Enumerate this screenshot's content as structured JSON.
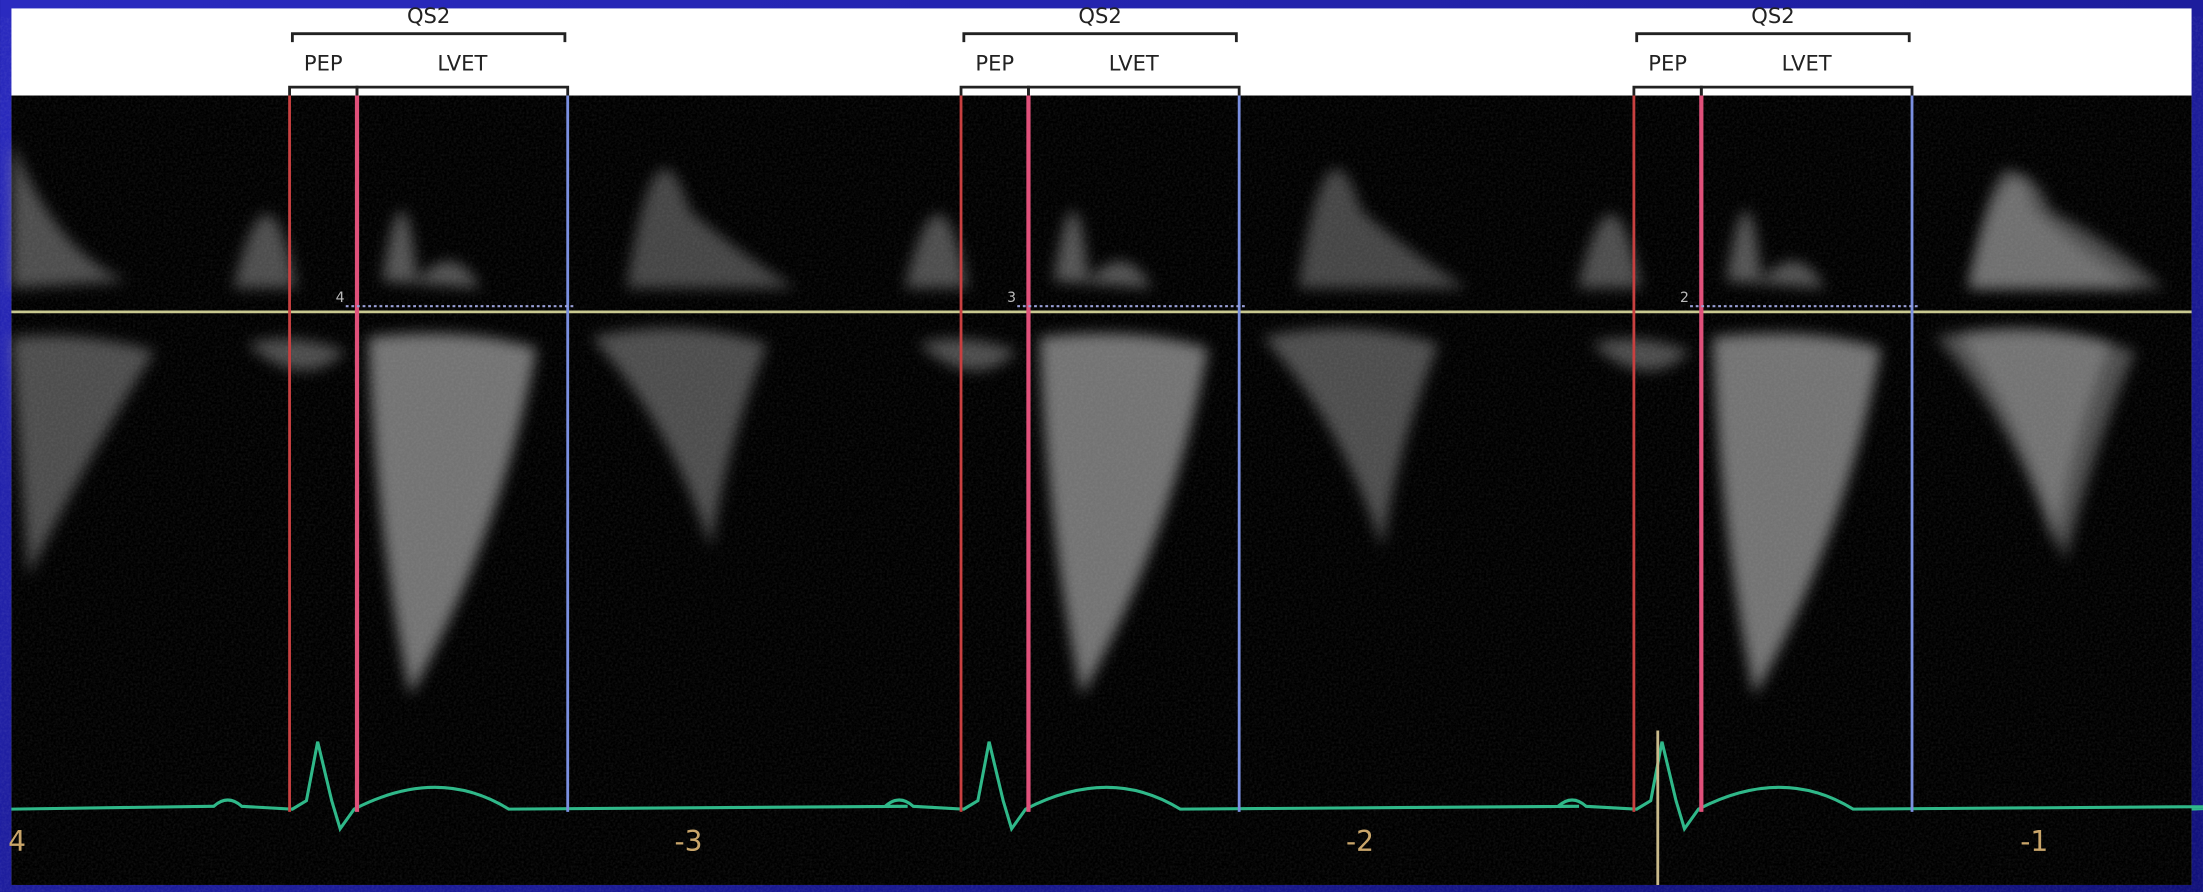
{
  "cycles": [
    {
      "qs2": "QS2",
      "pep": "PEP",
      "lvet": "LVET",
      "marker": "4"
    },
    {
      "qs2": "QS2",
      "pep": "PEP",
      "lvet": "LVET",
      "marker": "3"
    },
    {
      "qs2": "QS2",
      "pep": "PEP",
      "lvet": "LVET",
      "marker": "2"
    }
  ],
  "time_labels": [
    "4",
    "-3",
    "-2",
    "-1"
  ]
}
